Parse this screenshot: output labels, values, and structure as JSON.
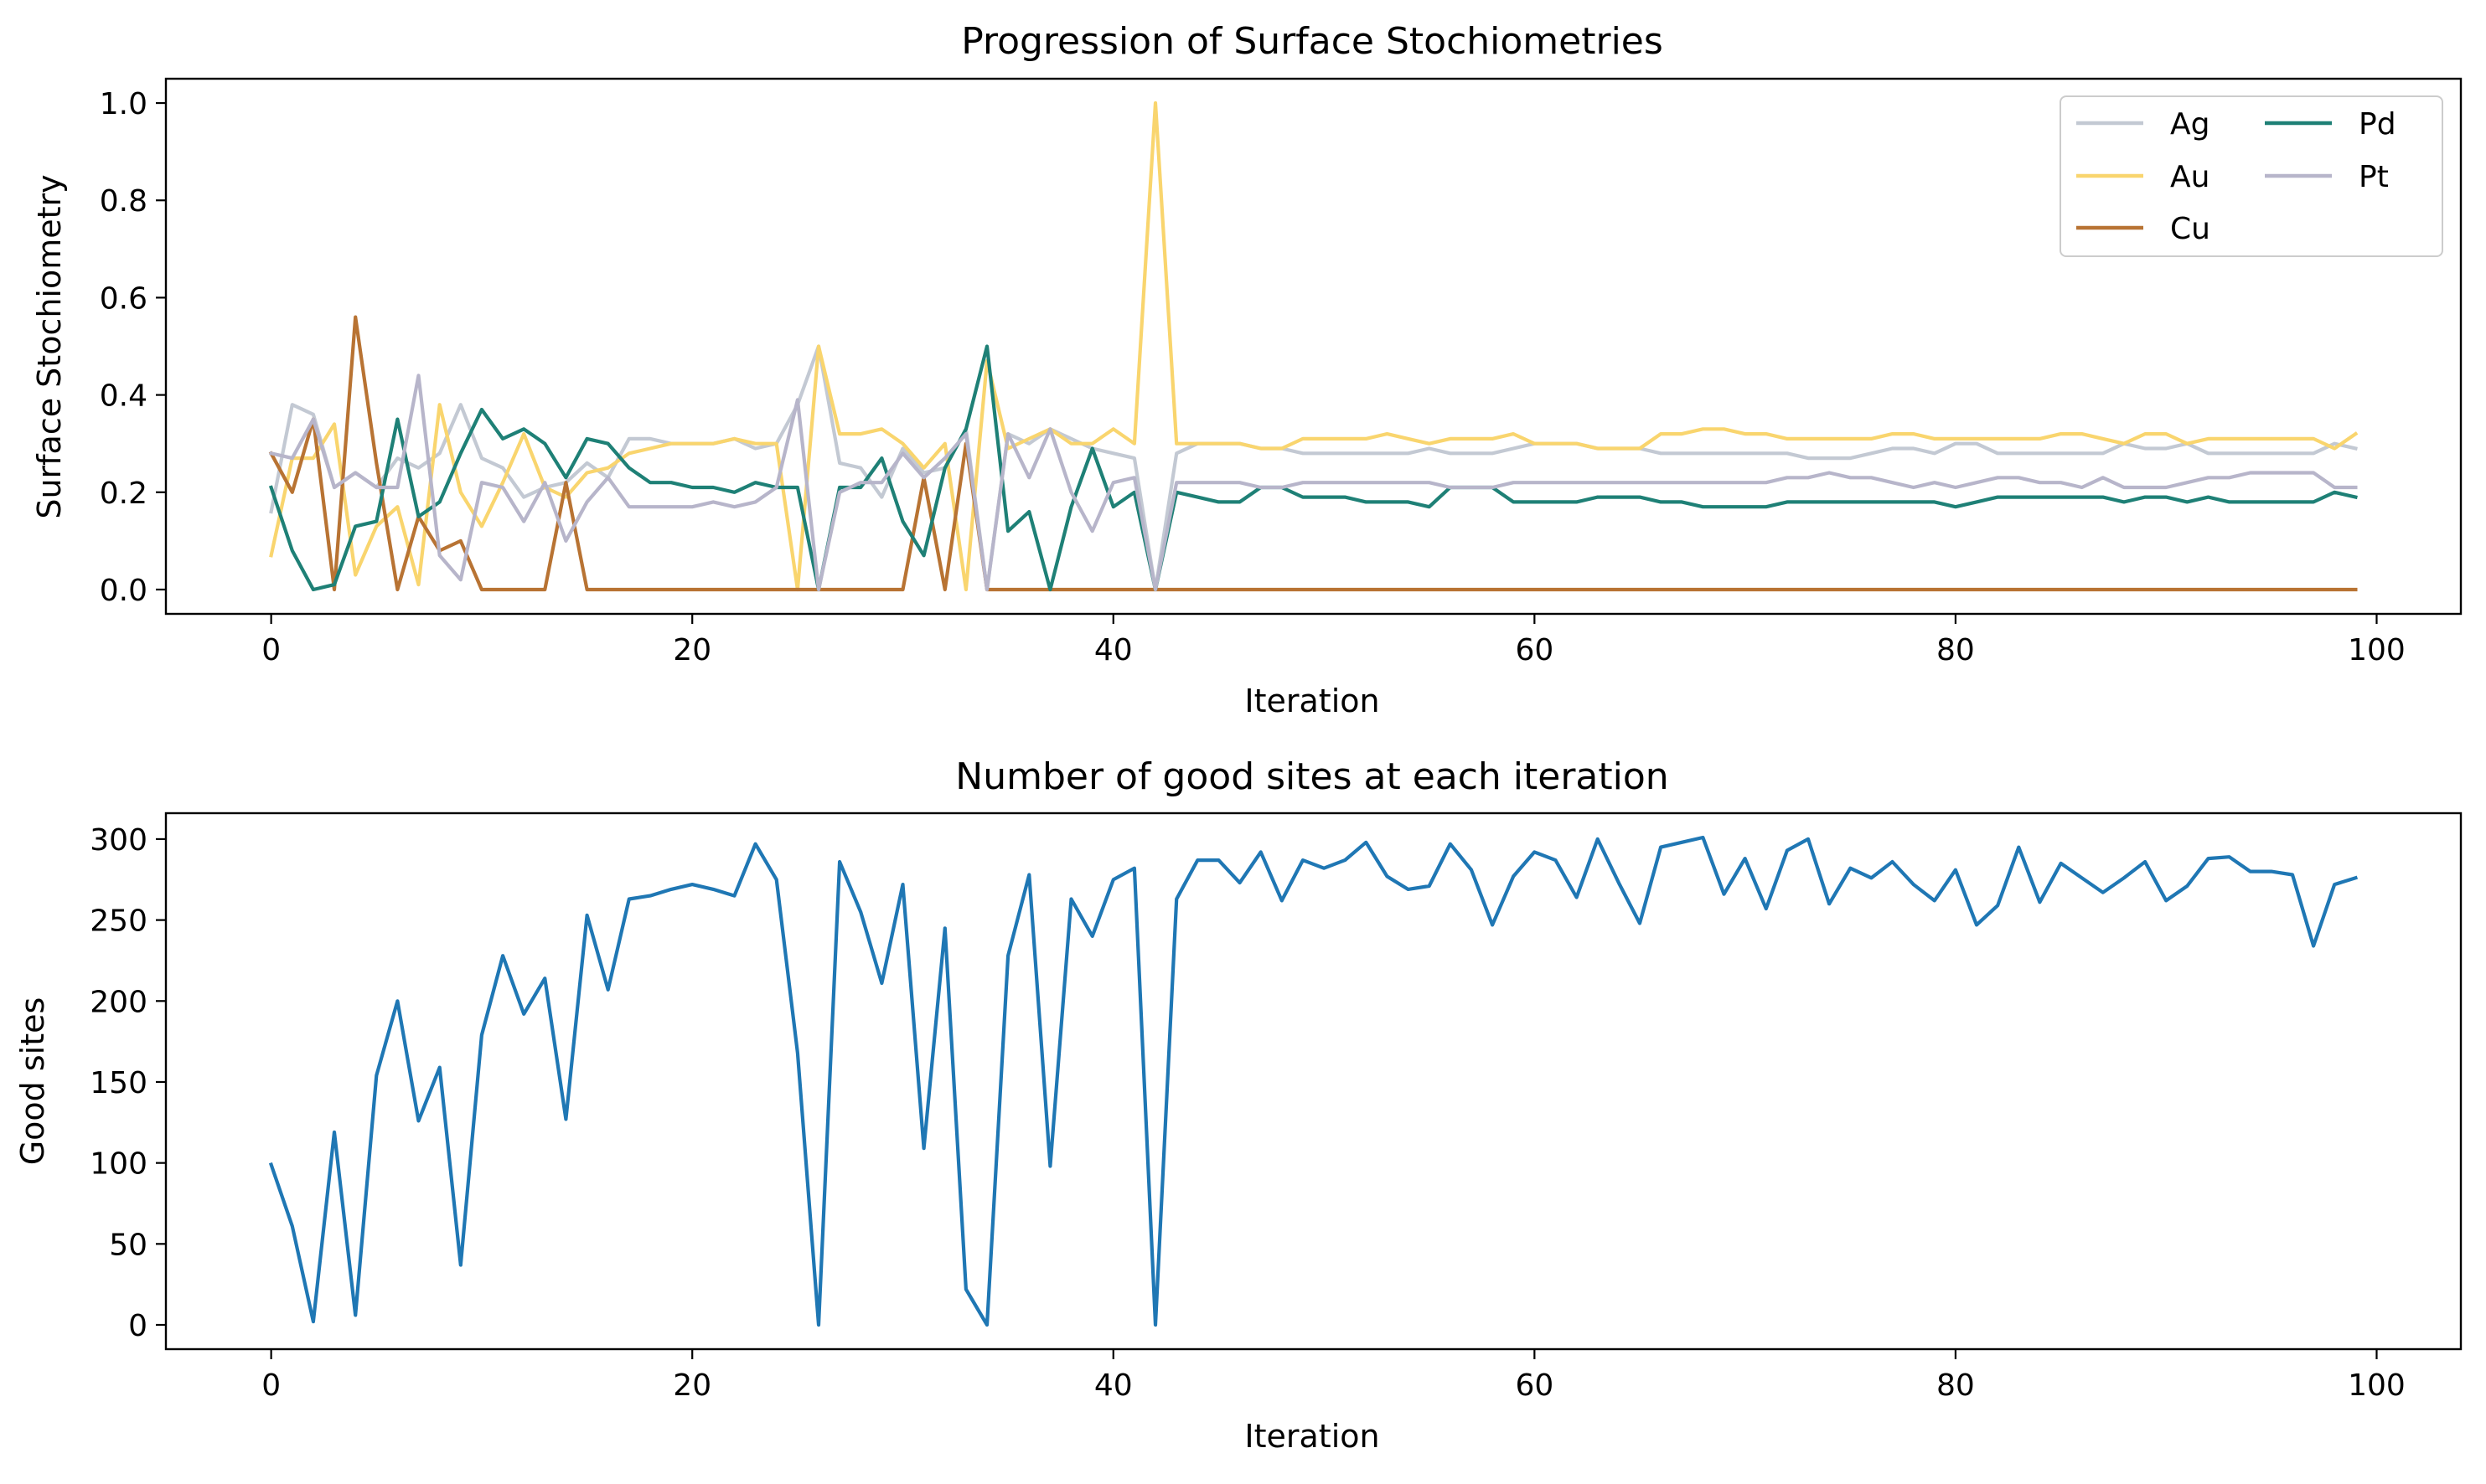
{
  "chart_data": [
    {
      "type": "line",
      "title": "Progression of Surface Stochiometries",
      "xlabel": "Iteration",
      "ylabel": "Surface Stochiometry",
      "xlim": [
        -5,
        104
      ],
      "ylim": [
        -0.05,
        1.05
      ],
      "xticks": [
        0,
        20,
        40,
        60,
        80,
        100
      ],
      "xtick_labels": [
        "0",
        "20",
        "40",
        "60",
        "80",
        "100"
      ],
      "yticks": [
        0.0,
        0.2,
        0.4,
        0.6,
        0.8,
        1.0
      ],
      "ytick_labels": [
        "0.0",
        "0.2",
        "0.4",
        "0.6",
        "0.8",
        "1.0"
      ],
      "grid": false,
      "legend": "top-right, 2 columns",
      "x": [
        0,
        1,
        2,
        3,
        4,
        5,
        6,
        7,
        8,
        9,
        10,
        11,
        12,
        13,
        14,
        15,
        16,
        17,
        18,
        19,
        20,
        21,
        22,
        23,
        24,
        25,
        26,
        27,
        28,
        29,
        30,
        31,
        32,
        33,
        34,
        35,
        36,
        37,
        38,
        39,
        40,
        41,
        42,
        43,
        44,
        45,
        46,
        47,
        48,
        49,
        50,
        51,
        52,
        53,
        54,
        55,
        56,
        57,
        58,
        59,
        60,
        61,
        62,
        63,
        64,
        65,
        66,
        67,
        68,
        69,
        70,
        71,
        72,
        73,
        74,
        75,
        76,
        77,
        78,
        79,
        80,
        81,
        82,
        83,
        84,
        85,
        86,
        87,
        88,
        89,
        90,
        91,
        92,
        93,
        94,
        95,
        96,
        97,
        98,
        99
      ],
      "series": [
        {
          "name": "Ag",
          "color": "#c3c9d3",
          "values": [
            0.16,
            0.38,
            0.36,
            0.21,
            0.24,
            0.21,
            0.27,
            0.25,
            0.28,
            0.38,
            0.27,
            0.25,
            0.19,
            0.21,
            0.22,
            0.26,
            0.23,
            0.31,
            0.31,
            0.3,
            0.3,
            0.3,
            0.31,
            0.29,
            0.3,
            0.38,
            0.5,
            0.26,
            0.25,
            0.19,
            0.29,
            0.24,
            0.25,
            0.33,
            0.0,
            0.32,
            0.3,
            0.33,
            0.31,
            0.29,
            0.28,
            0.27,
            0.0,
            0.28,
            0.3,
            0.3,
            0.3,
            0.29,
            0.29,
            0.28,
            0.28,
            0.28,
            0.28,
            0.28,
            0.28,
            0.29,
            0.28,
            0.28,
            0.28,
            0.29,
            0.3,
            0.3,
            0.3,
            0.29,
            0.29,
            0.29,
            0.28,
            0.28,
            0.28,
            0.28,
            0.28,
            0.28,
            0.28,
            0.27,
            0.27,
            0.27,
            0.28,
            0.29,
            0.29,
            0.28,
            0.3,
            0.3,
            0.28,
            0.28,
            0.28,
            0.28,
            0.28,
            0.28,
            0.3,
            0.29,
            0.29,
            0.3,
            0.28,
            0.28,
            0.28,
            0.28,
            0.28,
            0.28,
            0.3,
            0.29
          ]
        },
        {
          "name": "Au",
          "color": "#f9d56e",
          "values": [
            0.07,
            0.27,
            0.27,
            0.34,
            0.03,
            0.13,
            0.17,
            0.01,
            0.38,
            0.2,
            0.13,
            0.22,
            0.32,
            0.21,
            0.19,
            0.24,
            0.25,
            0.28,
            0.29,
            0.3,
            0.3,
            0.3,
            0.31,
            0.3,
            0.3,
            0.0,
            0.5,
            0.32,
            0.32,
            0.33,
            0.3,
            0.25,
            0.3,
            0.0,
            0.47,
            0.29,
            0.31,
            0.33,
            0.3,
            0.3,
            0.33,
            0.3,
            1.0,
            0.3,
            0.3,
            0.3,
            0.3,
            0.29,
            0.29,
            0.31,
            0.31,
            0.31,
            0.31,
            0.32,
            0.31,
            0.3,
            0.31,
            0.31,
            0.31,
            0.32,
            0.3,
            0.3,
            0.3,
            0.29,
            0.29,
            0.29,
            0.32,
            0.32,
            0.33,
            0.33,
            0.32,
            0.32,
            0.31,
            0.31,
            0.31,
            0.31,
            0.31,
            0.32,
            0.32,
            0.31,
            0.31,
            0.31,
            0.31,
            0.31,
            0.31,
            0.32,
            0.32,
            0.31,
            0.3,
            0.32,
            0.32,
            0.3,
            0.31,
            0.31,
            0.31,
            0.31,
            0.31,
            0.31,
            0.29,
            0.32
          ]
        },
        {
          "name": "Cu",
          "color": "#b87333",
          "values": [
            0.28,
            0.2,
            0.35,
            0.0,
            0.56,
            0.26,
            0.0,
            0.15,
            0.08,
            0.1,
            0.0,
            0.0,
            0.0,
            0.0,
            0.22,
            0.0,
            0.0,
            0.0,
            0.0,
            0.0,
            0.0,
            0.0,
            0.0,
            0.0,
            0.0,
            0.0,
            0.0,
            0.0,
            0.0,
            0.0,
            0.0,
            0.23,
            0.0,
            0.3,
            0.0,
            0.0,
            0.0,
            0.0,
            0.0,
            0.0,
            0.0,
            0.0,
            0.0,
            0.0,
            0.0,
            0.0,
            0.0,
            0.0,
            0.0,
            0.0,
            0.0,
            0.0,
            0.0,
            0.0,
            0.0,
            0.0,
            0.0,
            0.0,
            0.0,
            0.0,
            0.0,
            0.0,
            0.0,
            0.0,
            0.0,
            0.0,
            0.0,
            0.0,
            0.0,
            0.0,
            0.0,
            0.0,
            0.0,
            0.0,
            0.0,
            0.0,
            0.0,
            0.0,
            0.0,
            0.0,
            0.0,
            0.0,
            0.0,
            0.0,
            0.0,
            0.0,
            0.0,
            0.0,
            0.0,
            0.0,
            0.0,
            0.0,
            0.0,
            0.0,
            0.0,
            0.0,
            0.0,
            0.0,
            0.0,
            0.0
          ]
        },
        {
          "name": "Pd",
          "color": "#1e8076",
          "values": [
            0.21,
            0.08,
            0.0,
            0.01,
            0.13,
            0.14,
            0.35,
            0.15,
            0.18,
            0.28,
            0.37,
            0.31,
            0.33,
            0.3,
            0.23,
            0.31,
            0.3,
            0.25,
            0.22,
            0.22,
            0.21,
            0.21,
            0.2,
            0.22,
            0.21,
            0.21,
            0.0,
            0.21,
            0.21,
            0.27,
            0.14,
            0.07,
            0.25,
            0.33,
            0.5,
            0.12,
            0.16,
            0.0,
            0.17,
            0.29,
            0.17,
            0.2,
            0.0,
            0.2,
            0.19,
            0.18,
            0.18,
            0.21,
            0.21,
            0.19,
            0.19,
            0.19,
            0.18,
            0.18,
            0.18,
            0.17,
            0.21,
            0.21,
            0.21,
            0.18,
            0.18,
            0.18,
            0.18,
            0.19,
            0.19,
            0.19,
            0.18,
            0.18,
            0.17,
            0.17,
            0.17,
            0.17,
            0.18,
            0.18,
            0.18,
            0.18,
            0.18,
            0.18,
            0.18,
            0.18,
            0.17,
            0.18,
            0.19,
            0.19,
            0.19,
            0.19,
            0.19,
            0.19,
            0.18,
            0.19,
            0.19,
            0.18,
            0.19,
            0.18,
            0.18,
            0.18,
            0.18,
            0.18,
            0.2,
            0.19
          ]
        },
        {
          "name": "Pt",
          "color": "#b7b5ca",
          "values": [
            0.28,
            0.27,
            0.35,
            0.21,
            0.24,
            0.21,
            0.21,
            0.44,
            0.07,
            0.02,
            0.22,
            0.21,
            0.14,
            0.22,
            0.1,
            0.18,
            0.23,
            0.17,
            0.17,
            0.17,
            0.17,
            0.18,
            0.17,
            0.18,
            0.21,
            0.39,
            0.0,
            0.2,
            0.22,
            0.22,
            0.28,
            0.23,
            0.27,
            0.32,
            0.0,
            0.32,
            0.23,
            0.33,
            0.2,
            0.12,
            0.22,
            0.23,
            0.0,
            0.22,
            0.22,
            0.22,
            0.22,
            0.21,
            0.21,
            0.22,
            0.22,
            0.22,
            0.22,
            0.22,
            0.22,
            0.22,
            0.21,
            0.21,
            0.21,
            0.22,
            0.22,
            0.22,
            0.22,
            0.22,
            0.22,
            0.22,
            0.22,
            0.22,
            0.22,
            0.22,
            0.22,
            0.22,
            0.23,
            0.23,
            0.24,
            0.23,
            0.23,
            0.22,
            0.21,
            0.22,
            0.21,
            0.22,
            0.23,
            0.23,
            0.22,
            0.22,
            0.21,
            0.23,
            0.21,
            0.21,
            0.21,
            0.22,
            0.23,
            0.23,
            0.24,
            0.24,
            0.24,
            0.24,
            0.21,
            0.21
          ]
        }
      ]
    },
    {
      "type": "line",
      "title": "Number of good sites at each iteration",
      "xlabel": "Iteration",
      "ylabel": "Good sites",
      "xlim": [
        -5,
        104
      ],
      "ylim": [
        -15,
        316
      ],
      "xticks": [
        0,
        20,
        40,
        60,
        80,
        100
      ],
      "xtick_labels": [
        "0",
        "20",
        "40",
        "60",
        "80",
        "100"
      ],
      "yticks": [
        0,
        50,
        100,
        150,
        200,
        250,
        300
      ],
      "ytick_labels": [
        "0",
        "50",
        "100",
        "150",
        "200",
        "250",
        "300"
      ],
      "grid": false,
      "x": [
        0,
        1,
        2,
        3,
        4,
        5,
        6,
        7,
        8,
        9,
        10,
        11,
        12,
        13,
        14,
        15,
        16,
        17,
        18,
        19,
        20,
        21,
        22,
        23,
        24,
        25,
        26,
        27,
        28,
        29,
        30,
        31,
        32,
        33,
        34,
        35,
        36,
        37,
        38,
        39,
        40,
        41,
        42,
        43,
        44,
        45,
        46,
        47,
        48,
        49,
        50,
        51,
        52,
        53,
        54,
        55,
        56,
        57,
        58,
        59,
        60,
        61,
        62,
        63,
        64,
        65,
        66,
        67,
        68,
        69,
        70,
        71,
        72,
        73,
        74,
        75,
        76,
        77,
        78,
        79,
        80,
        81,
        82,
        83,
        84,
        85,
        86,
        87,
        88,
        89,
        90,
        91,
        92,
        93,
        94,
        95,
        96,
        97,
        98,
        99
      ],
      "series": [
        {
          "color": "#1f77b4",
          "values": [
            99,
            61,
            2,
            119,
            6,
            154,
            200,
            126,
            159,
            37,
            179,
            228,
            192,
            214,
            127,
            253,
            207,
            263,
            265,
            269,
            272,
            269,
            265,
            297,
            275,
            168,
            0,
            286,
            255,
            211,
            272,
            109,
            245,
            22,
            0,
            228,
            278,
            98,
            263,
            240,
            275,
            282,
            0,
            263,
            287,
            287,
            273,
            292,
            262,
            287,
            282,
            287,
            298,
            277,
            269,
            271,
            297,
            281,
            247,
            277,
            292,
            287,
            264,
            300,
            273,
            248,
            295,
            298,
            301,
            266,
            288,
            257,
            293,
            300,
            260,
            282,
            276,
            286,
            272,
            262,
            281,
            247,
            259,
            295,
            261,
            285,
            276,
            267,
            276,
            286,
            262,
            271,
            288,
            289,
            280,
            280,
            278,
            234,
            272,
            276
          ]
        }
      ]
    }
  ]
}
